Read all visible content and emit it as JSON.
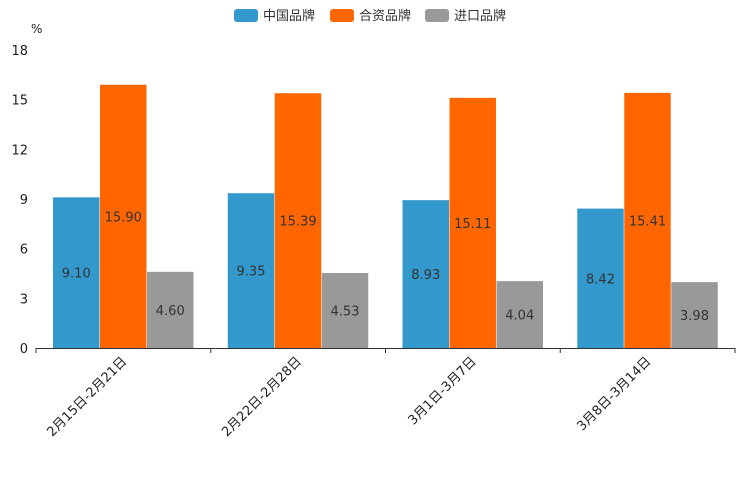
{
  "chart_data": {
    "type": "bar",
    "unit_label": "%",
    "categories": [
      "2月15日-2月21日",
      "2月22日-2月28日",
      "3月1日-3月7日",
      "3月8日-3月14日"
    ],
    "series": [
      {
        "name": "中国品牌",
        "color": "#3399cc",
        "values": [
          9.1,
          9.35,
          8.93,
          8.42
        ],
        "labels": [
          "9.10",
          "9.35",
          "8.93",
          "8.42"
        ]
      },
      {
        "name": "合资品牌",
        "color": "#ff6600",
        "values": [
          15.9,
          15.39,
          15.11,
          15.41
        ],
        "labels": [
          "15.90",
          "15.39",
          "15.11",
          "15.41"
        ]
      },
      {
        "name": "进口品牌",
        "color": "#999999",
        "values": [
          4.6,
          4.53,
          4.04,
          3.98
        ],
        "labels": [
          "4.60",
          "4.53",
          "4.04",
          "3.98"
        ]
      }
    ],
    "ylim": [
      0,
      18
    ],
    "yticks": [
      "0",
      "3",
      "6",
      "9",
      "12",
      "15",
      "18"
    ],
    "legend_position": "top-center",
    "grid": false
  }
}
